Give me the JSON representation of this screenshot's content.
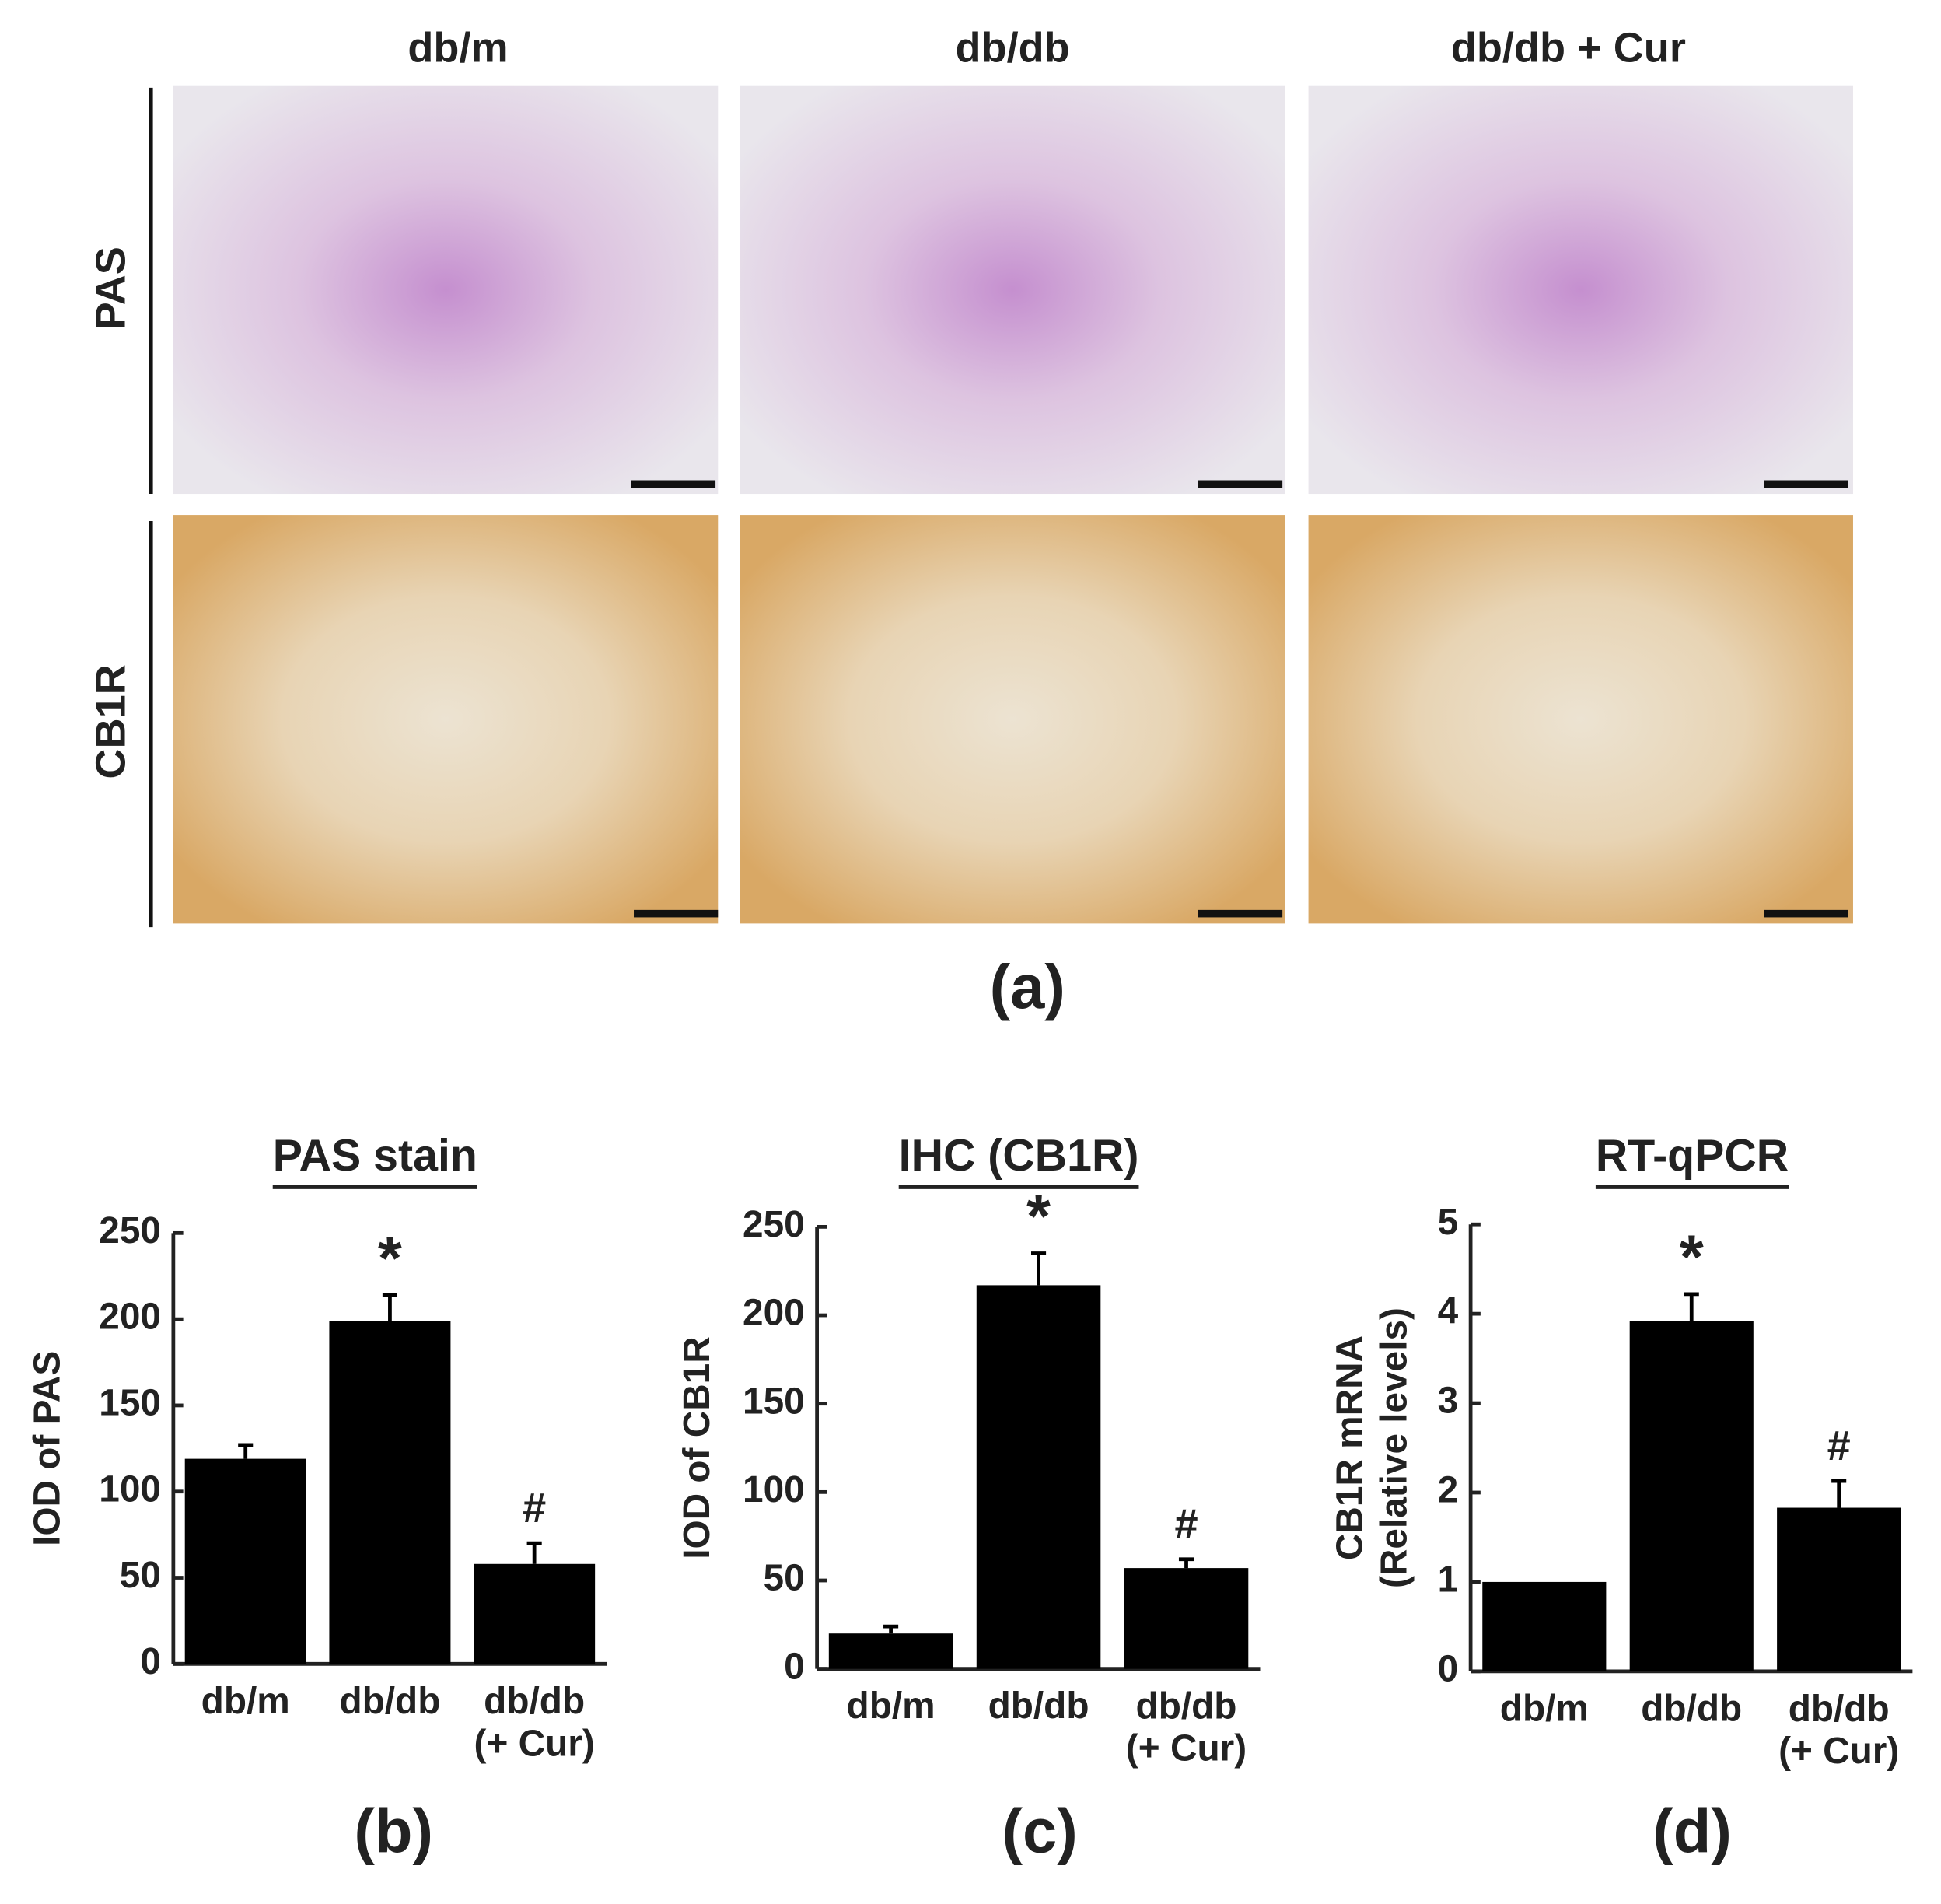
{
  "panel_a": {
    "column_labels": [
      "db/m",
      "db/db",
      "db/db + Cur"
    ],
    "row_labels": [
      "PAS",
      "CB1R"
    ],
    "label": "(a)"
  },
  "chart_data": [
    {
      "type": "bar",
      "title": "PAS stain",
      "ylabel": "IOD of PAS",
      "label": "(b)",
      "categories": [
        "db/m",
        "db/db",
        "db/db (+ Cur)"
      ],
      "values": [
        119,
        199,
        58
      ],
      "errors": [
        8,
        15,
        12
      ],
      "annotations": [
        null,
        "*",
        "#"
      ],
      "color": "#000000",
      "ylim": [
        0,
        250
      ],
      "yticks": [
        0,
        50,
        100,
        150,
        200,
        250
      ]
    },
    {
      "type": "bar",
      "title": "IHC (CB1R)",
      "ylabel": "IOD of CB1R",
      "label": "(c)",
      "categories": [
        "db/m",
        "db/db",
        "db/db (+ Cur)"
      ],
      "values": [
        20,
        217,
        57
      ],
      "errors": [
        4,
        18,
        5
      ],
      "annotations": [
        null,
        "*",
        "#"
      ],
      "color": "#000000",
      "ylim": [
        0,
        250
      ],
      "yticks": [
        0,
        50,
        100,
        150,
        200,
        250
      ]
    },
    {
      "type": "bar",
      "title": "RT-qPCR",
      "ylabel": "CB1R mRNA (Relative levels)",
      "label": "(d)",
      "categories": [
        "db/m",
        "db/db",
        "db/db (+ Cur)"
      ],
      "values": [
        1.0,
        3.92,
        1.83
      ],
      "errors": [
        0,
        0.3,
        0.3
      ],
      "annotations": [
        null,
        "*",
        "#"
      ],
      "color": "#000000",
      "ylim": [
        0,
        5
      ],
      "yticks": [
        0,
        1,
        2,
        3,
        4,
        5
      ]
    }
  ]
}
